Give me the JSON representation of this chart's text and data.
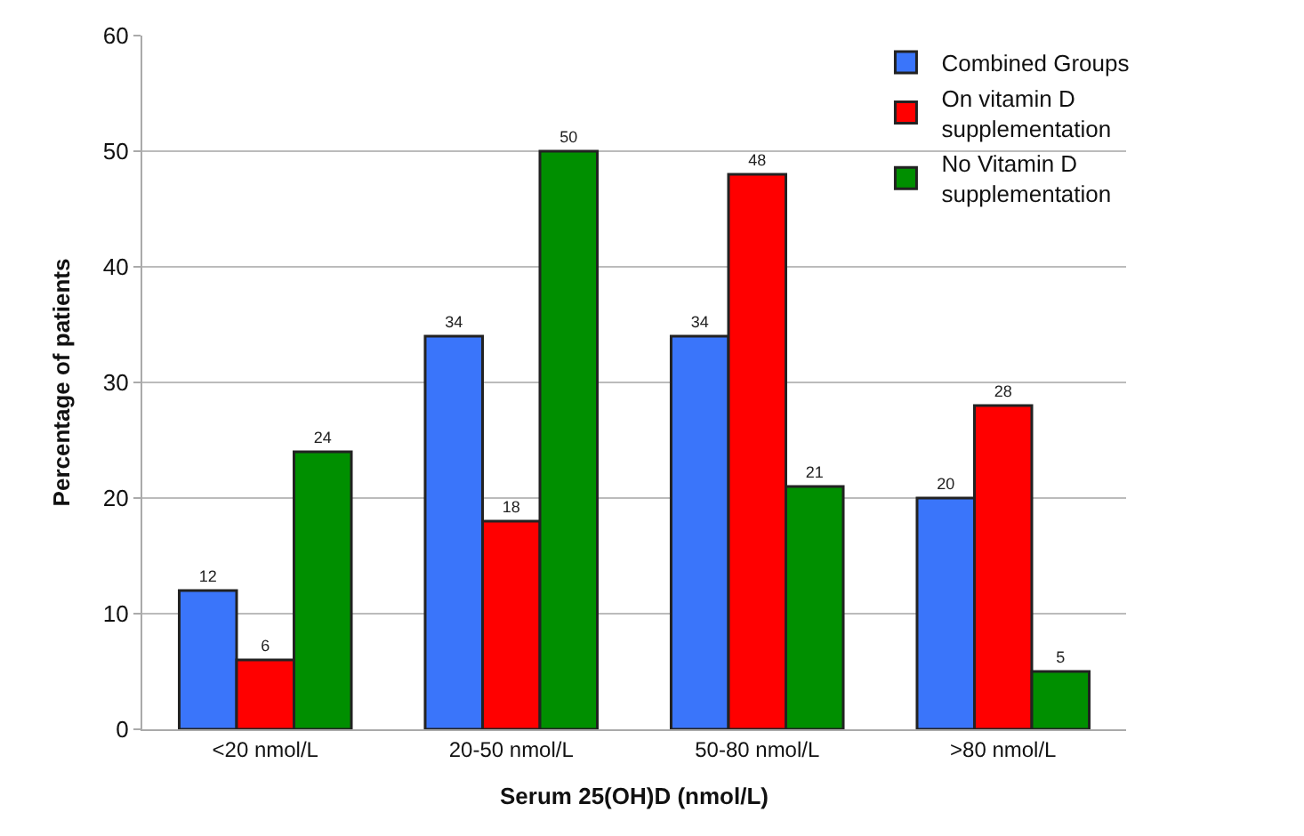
{
  "chart_data": {
    "type": "bar",
    "xlabel": "Serum 25(OH)D (nmol/L)",
    "ylabel": "Percentage of patients",
    "categories": [
      "<20 nmol/L",
      "20-50 nmol/L",
      "50-80 nmol/L",
      ">80 nmol/L"
    ],
    "series": [
      {
        "name": "Combined Groups",
        "color": "#3a75fa",
        "values": [
          12,
          34,
          34,
          20
        ]
      },
      {
        "name": "On vitamin D supplementation",
        "color": "#ff0000",
        "values": [
          6,
          18,
          48,
          28
        ]
      },
      {
        "name": "No Vitamin D supplementation",
        "color": "#008f00",
        "values": [
          24,
          50,
          21,
          5
        ]
      }
    ],
    "ylim": [
      0,
      60
    ],
    "yticks": [
      0,
      10,
      20,
      30,
      40,
      50,
      60
    ],
    "grid": "y",
    "legend": "top right",
    "data_labels": true
  }
}
